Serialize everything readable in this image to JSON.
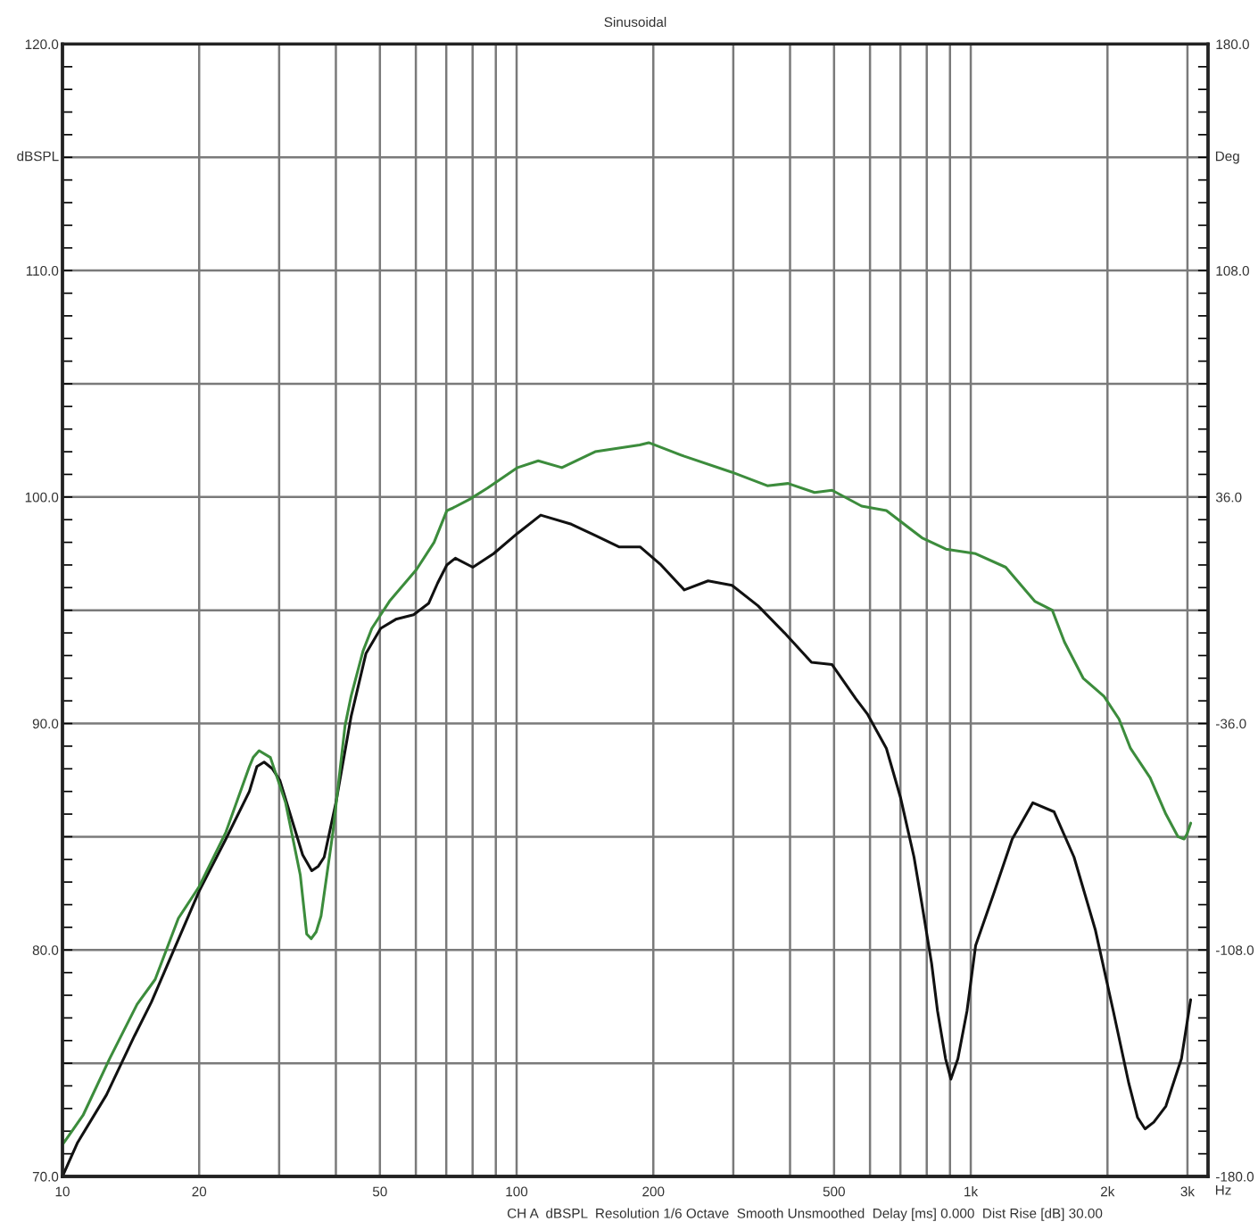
{
  "chart_data": {
    "type": "line",
    "title": "Sinusoidal",
    "xlabel": "Hz",
    "ylabel": "dBSPL",
    "y2label": "Deg",
    "annotations": [
      "CH A  dBSPL  Resolution 1/6 Octave  Smooth Unsmoothed  Delay [ms] 0.000  Dist Rise [dB] 30.00"
    ],
    "log": "x",
    "grid": true,
    "xlim": [
      10,
      3330
    ],
    "xticks": [
      10,
      20,
      {
        "value": 30,
        "label": null
      },
      {
        "value": 40,
        "label": null
      },
      50,
      {
        "value": 60,
        "label": null
      },
      {
        "value": 70,
        "label": null
      },
      {
        "value": 80,
        "label": null
      },
      {
        "value": 90,
        "label": null
      },
      100,
      200,
      {
        "value": 300,
        "label": null
      },
      {
        "value": 400,
        "label": null
      },
      500,
      {
        "value": 600,
        "label": null
      },
      {
        "value": 700,
        "label": null
      },
      {
        "value": 800,
        "label": null
      },
      {
        "value": 900,
        "label": null
      },
      {
        "value": 1000,
        "label": "1k"
      },
      {
        "value": 2000,
        "label": "2k"
      },
      {
        "value": 3000,
        "label": "3k"
      }
    ],
    "ylim": [
      70,
      120
    ],
    "yticks": [
      {
        "value": 70,
        "label": "70.0"
      },
      {
        "value": 75,
        "label": null
      },
      {
        "value": 80,
        "label": "80.0"
      },
      {
        "value": 85,
        "label": null
      },
      {
        "value": 90,
        "label": "90.0"
      },
      {
        "value": 95,
        "label": null
      },
      {
        "value": 100,
        "label": "100.0"
      },
      {
        "value": 105,
        "label": null
      },
      {
        "value": 110,
        "label": "110.0"
      },
      {
        "value": 115,
        "label": null
      },
      {
        "value": 120,
        "label": "120.0"
      }
    ],
    "y2lim": [
      -180,
      180
    ],
    "y2ticks": [
      {
        "value": -180,
        "label": "-180.0"
      },
      {
        "value": -144,
        "label": null
      },
      {
        "value": -108,
        "label": "-108.0"
      },
      {
        "value": -72,
        "label": null
      },
      {
        "value": -36,
        "label": "-36.0"
      },
      {
        "value": 0,
        "label": null
      },
      {
        "value": 36,
        "label": "36.0"
      },
      {
        "value": 72,
        "label": null
      },
      {
        "value": 108,
        "label": "108.0"
      },
      {
        "value": 144,
        "label": null
      },
      {
        "value": 180,
        "label": "180.0"
      }
    ],
    "series": [
      {
        "color": "#111111",
        "x": [
          10,
          10.8,
          12.5,
          14.4,
          15.7,
          17.5,
          20,
          22.9,
          25.8,
          26.8,
          27.8,
          29,
          30.1,
          32.4,
          33.8,
          35.4,
          36.6,
          37.7,
          40,
          43.2,
          46.6,
          50.2,
          54.2,
          59.3,
          64,
          67,
          70.2,
          73.3,
          80.1,
          89,
          100.5,
          113,
          132,
          149,
          168,
          187,
          208,
          234,
          264,
          298,
          340,
          389,
          446,
          495,
          558,
          593,
          652,
          701,
          750,
          781,
          820,
          845,
          880,
          904,
          937,
          981,
          1025,
          1124,
          1234,
          1370,
          1526,
          1688,
          1880,
          2060,
          2229,
          2330,
          2420,
          2530,
          2689,
          2910,
          3049
        ],
        "values": [
          70.0,
          71.5,
          73.6,
          76.2,
          77.7,
          79.9,
          82.6,
          84.9,
          87.0,
          88.1,
          88.3,
          88.0,
          87.5,
          85.4,
          84.2,
          83.5,
          83.7,
          84.1,
          86.5,
          90.3,
          93.1,
          94.2,
          94.6,
          94.8,
          95.3,
          96.2,
          97.0,
          97.3,
          96.9,
          97.5,
          98.4,
          99.2,
          98.8,
          98.3,
          97.8,
          97.8,
          97.0,
          95.9,
          96.3,
          96.1,
          95.2,
          94.0,
          92.7,
          92.6,
          91.1,
          90.4,
          88.9,
          86.7,
          84.1,
          82.0,
          79.4,
          77.3,
          75.2,
          74.3,
          75.2,
          77.3,
          80.2,
          82.5,
          84.9,
          86.5,
          86.1,
          84.1,
          80.9,
          77.3,
          74.1,
          72.6,
          72.1,
          72.4,
          73.1,
          75.2,
          77.8
        ]
      },
      {
        "color": "#3c8c3c",
        "x": [
          10,
          11.1,
          12.7,
          14.6,
          16,
          18,
          20,
          22.9,
          25.8,
          26.3,
          27.1,
          28.7,
          31,
          33.4,
          34.5,
          35.3,
          36.2,
          37.1,
          39.4,
          41.9,
          43.2,
          45.9,
          48,
          50.2,
          52.5,
          60.2,
          65.8,
          70.2,
          72.1,
          78.8,
          86.3,
          100.5,
          111.6,
          125.8,
          148.9,
          186.6,
          195.4,
          234,
          297.5,
          356.5,
          396,
          453,
          495,
          575,
          652,
          781,
          882,
          1025,
          1194,
          1383,
          1512,
          1608,
          1768,
          1965,
          2120,
          2248,
          2483,
          2689,
          2860,
          2950,
          2990,
          3050
        ],
        "values": [
          71.4,
          72.7,
          75.2,
          77.6,
          78.7,
          81.4,
          82.8,
          85.2,
          88.1,
          88.5,
          88.8,
          88.5,
          86.5,
          83.3,
          80.7,
          80.5,
          80.8,
          81.5,
          85.2,
          89.9,
          91.2,
          93.2,
          94.2,
          94.8,
          95.4,
          96.8,
          98.0,
          99.4,
          99.5,
          99.9,
          100.4,
          101.3,
          101.6,
          101.3,
          102.0,
          102.3,
          102.4,
          101.8,
          101.1,
          100.5,
          100.6,
          100.2,
          100.3,
          99.6,
          99.4,
          98.2,
          97.7,
          97.5,
          96.9,
          95.4,
          95.0,
          93.6,
          92.0,
          91.2,
          90.2,
          88.9,
          87.6,
          86.0,
          85.0,
          84.9,
          85.1,
          85.6
        ]
      }
    ]
  }
}
